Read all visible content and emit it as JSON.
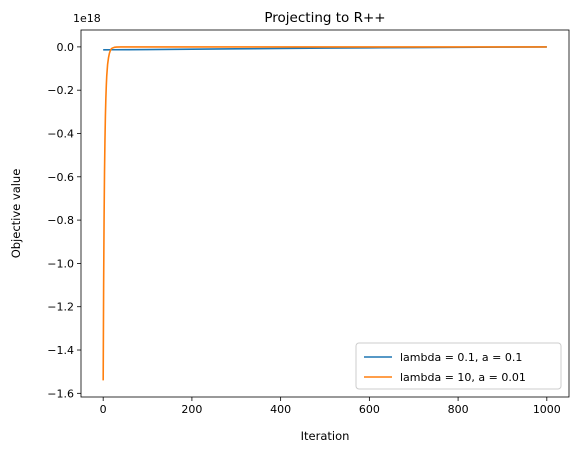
{
  "chart_data": {
    "type": "line",
    "title": "Projecting to R++",
    "xlabel": "Iteration",
    "ylabel": "Objective value",
    "offset_label": "1e18",
    "xlim": [
      -50,
      1050
    ],
    "ylim": [
      -1.617,
      0.078
    ],
    "x_ticks": [
      0,
      200,
      400,
      600,
      800,
      1000
    ],
    "x_tick_labels": [
      "0",
      "200",
      "400",
      "600",
      "800",
      "1000"
    ],
    "y_ticks": [
      0.0,
      -0.2,
      -0.4,
      -0.6,
      -0.8,
      -1.0,
      -1.2,
      -1.4,
      -1.6
    ],
    "y_tick_labels": [
      "0.0",
      "−0.2",
      "−0.4",
      "−0.6",
      "−0.8",
      "−1.0",
      "−1.2",
      "−1.4",
      "−1.6"
    ],
    "grid": false,
    "legend_position": "lower-right",
    "series": [
      {
        "name": "lambda = 0.1, a = 0.1",
        "color": "#1f77b4",
        "x": [
          0,
          10,
          20,
          50,
          100,
          200,
          300,
          400,
          500,
          600,
          700,
          800,
          900,
          1000
        ],
        "y": [
          -0.0135,
          -0.0135,
          -0.0132,
          -0.0128,
          -0.0122,
          -0.0105,
          -0.0088,
          -0.0072,
          -0.0056,
          -0.0042,
          -0.003,
          -0.0018,
          -0.0008,
          0.0
        ]
      },
      {
        "name": "lambda = 10, a = 0.01",
        "color": "#ff7f0e",
        "x": [
          0,
          1,
          2,
          3,
          4,
          5,
          6,
          7,
          8,
          10,
          12,
          14,
          16,
          18,
          20,
          25,
          30,
          40,
          50,
          100,
          200,
          400,
          600,
          800,
          1000
        ],
        "y": [
          -1.54,
          -1.1,
          -0.8,
          -0.58,
          -0.43,
          -0.32,
          -0.24,
          -0.18,
          -0.135,
          -0.08,
          -0.05,
          -0.03,
          -0.018,
          -0.01,
          -0.006,
          -0.002,
          -0.0008,
          -0.0002,
          0.0,
          0.0,
          0.0,
          0.0,
          0.0,
          0.0,
          0.0
        ]
      }
    ]
  }
}
